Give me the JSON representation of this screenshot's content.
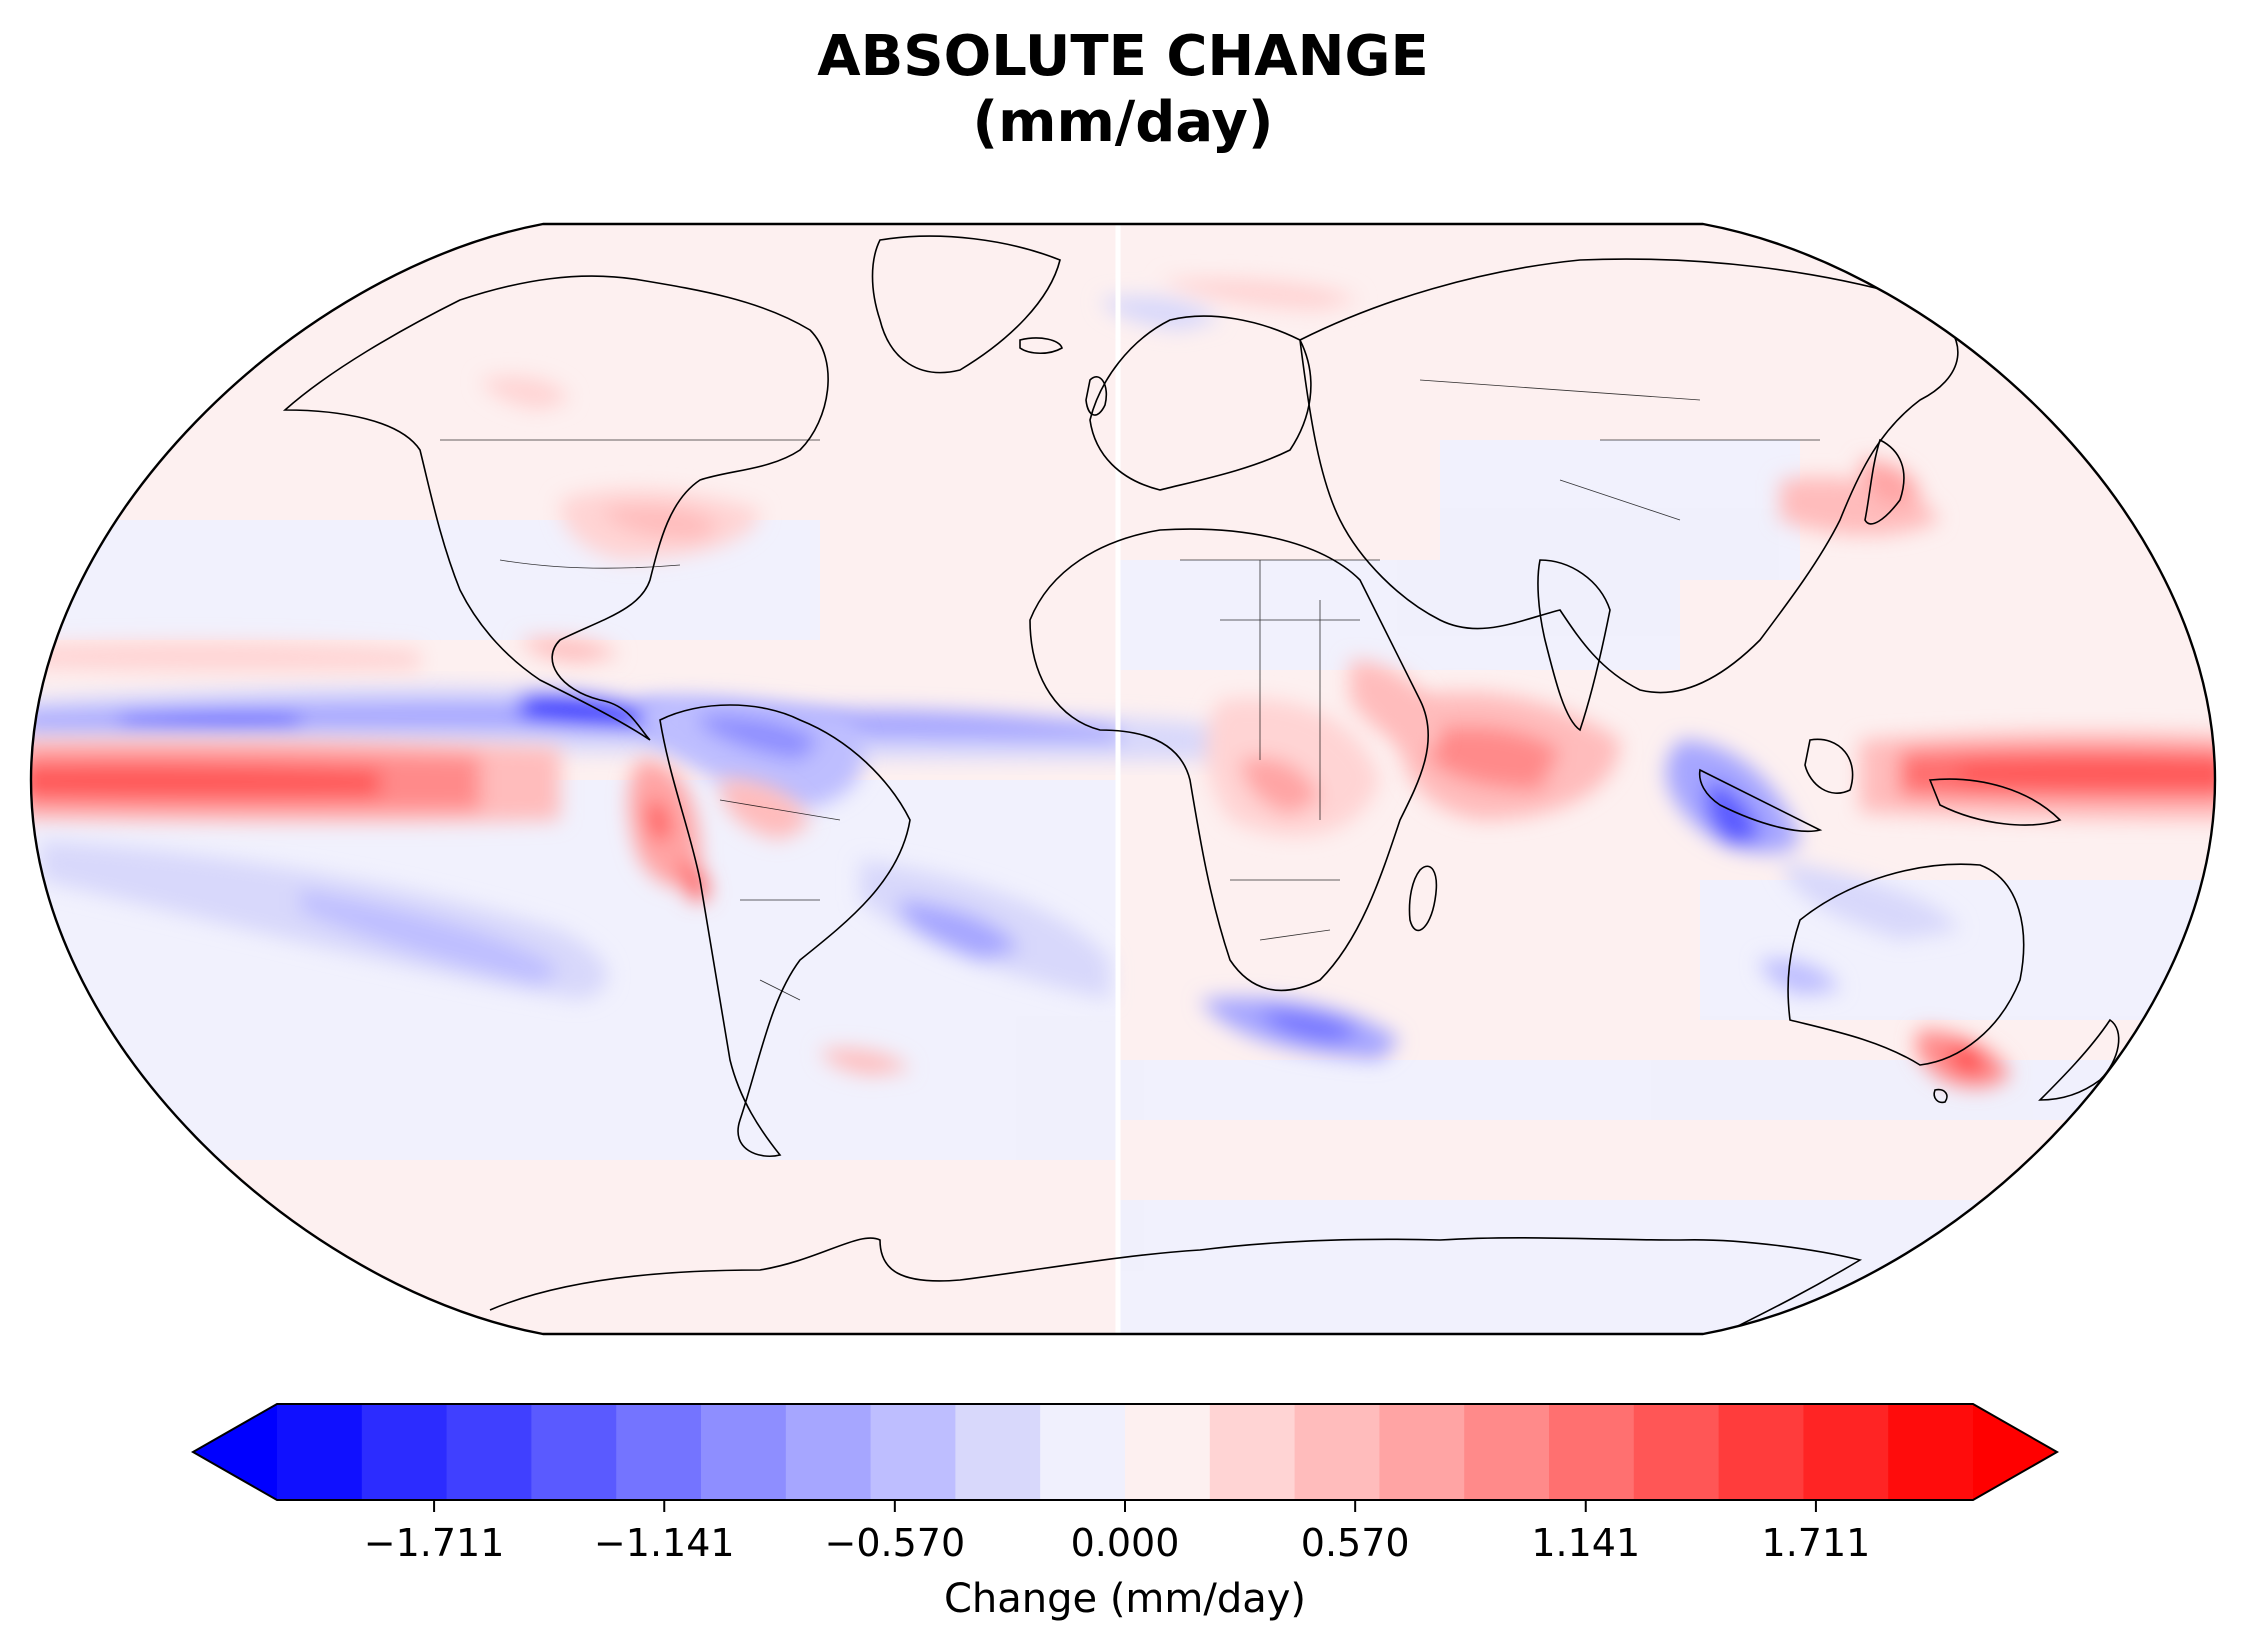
{
  "title": {
    "line1": "ABSOLUTE CHANGE",
    "line2": "(mm/day)"
  },
  "colorbar": {
    "label": "Change (mm/day)",
    "ticks": [
      "−1.711",
      "−1.141",
      "−0.570",
      "0.000",
      "0.570",
      "1.141",
      "1.711"
    ],
    "tick_values": [
      -1.711,
      -1.141,
      -0.57,
      0.0,
      0.57,
      1.141,
      1.711
    ],
    "range": [
      -2.1,
      2.1
    ],
    "extend": "both",
    "colors": [
      "#1010ff",
      "#2c2cff",
      "#4040ff",
      "#5a5aff",
      "#7474ff",
      "#8e8eff",
      "#a6a6ff",
      "#bebeff",
      "#d8d8fb",
      "#f0f0fd",
      "#fdf0f0",
      "#ffd4d4",
      "#ffbcbc",
      "#ffa4a4",
      "#ff8a8a",
      "#ff7070",
      "#ff5656",
      "#ff3c3c",
      "#ff2424",
      "#ff0c0c"
    ],
    "over_color": "#ff0000",
    "under_color": "#0000ff"
  },
  "map": {
    "projection": "Robinson",
    "background_positive": "#fdf0f0",
    "background_negative": "#f0f0fd"
  }
}
